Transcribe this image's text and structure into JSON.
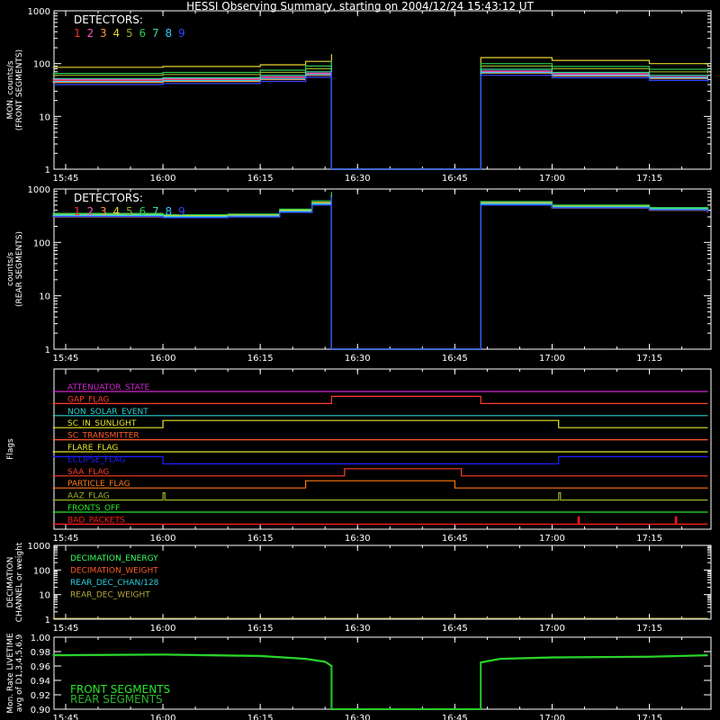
{
  "title": "HESSI Observing Summary, starting on 2004/12/24 15:43:12 UT",
  "colors": {
    "background": "#000000",
    "axes": "#ffffff",
    "detectors": [
      "#ff3030",
      "#ff50c8",
      "#ff9640",
      "#e6d230",
      "#96aa28",
      "#28c850",
      "#32dc96",
      "#32c8ff",
      "#3246ff"
    ],
    "flags": [
      "#d028d0",
      "#ff3c28",
      "#28d2d2",
      "#e6e628",
      "#ff5a28",
      "#e6e628",
      "#1e1eff",
      "#ff3c28",
      "#ff7814",
      "#96b428",
      "#28e628",
      "#ff1e1e"
    ],
    "decimation": [
      "#3cff64",
      "#ff5a28",
      "#28d2dc",
      "#b4aa3c"
    ],
    "livetime": [
      "#28e628",
      "#2cb42c"
    ]
  },
  "time_ticks": [
    "15:45",
    "16:00",
    "16:15",
    "16:30",
    "16:45",
    "17:00",
    "17:15"
  ],
  "chart_data": [
    {
      "type": "line",
      "panel": "front",
      "ylabel": [
        "MON. counts/s",
        "(FRONT SEGMENTS)"
      ],
      "yscale": "log",
      "ylim": [
        1,
        1000
      ],
      "yticks": [
        "1",
        "10",
        "100",
        "1000"
      ],
      "legend_title": "DETECTORS:",
      "legend_items": [
        "1",
        "2",
        "3",
        "4",
        "5",
        "6",
        "7",
        "8",
        "9"
      ],
      "x": [
        "15:43",
        "16:00",
        "16:15",
        "16:22",
        "16:26",
        "16:26",
        "16:49",
        "16:49",
        "17:00",
        "17:15",
        "17:24"
      ],
      "series": [
        {
          "name": "1",
          "values": [
            48,
            50,
            55,
            65,
            80,
            1,
            1,
            70,
            62,
            55,
            50
          ]
        },
        {
          "name": "2",
          "values": [
            50,
            52,
            56,
            66,
            82,
            1,
            1,
            72,
            64,
            56,
            52
          ]
        },
        {
          "name": "3",
          "values": [
            44,
            46,
            50,
            60,
            75,
            1,
            1,
            66,
            58,
            52,
            48
          ]
        },
        {
          "name": "4",
          "values": [
            85,
            88,
            95,
            110,
            150,
            1,
            1,
            130,
            115,
            100,
            90
          ]
        },
        {
          "name": "5",
          "values": [
            60,
            62,
            68,
            80,
            100,
            1,
            1,
            90,
            80,
            70,
            65
          ]
        },
        {
          "name": "6",
          "values": [
            65,
            68,
            75,
            90,
            115,
            1,
            1,
            100,
            88,
            78,
            72
          ]
        },
        {
          "name": "7",
          "values": [
            52,
            54,
            60,
            70,
            88,
            1,
            1,
            78,
            68,
            60,
            56
          ]
        },
        {
          "name": "8",
          "values": [
            46,
            48,
            52,
            62,
            78,
            1,
            1,
            68,
            60,
            54,
            50
          ]
        },
        {
          "name": "9",
          "values": [
            40,
            42,
            46,
            55,
            70,
            1,
            1,
            60,
            54,
            48,
            45
          ]
        }
      ]
    },
    {
      "type": "line",
      "panel": "rear",
      "ylabel": [
        "counts/s",
        "(REAR SEGMENTS)"
      ],
      "yscale": "log",
      "ylim": [
        1,
        1000
      ],
      "yticks": [
        "1",
        "10",
        "100",
        "1000"
      ],
      "legend_title": "DETECTORS:",
      "legend_items": [
        "1",
        "2",
        "3",
        "4",
        "5",
        "6",
        "7",
        "8",
        "9"
      ],
      "x": [
        "15:43",
        "16:00",
        "16:10",
        "16:18",
        "16:23",
        "16:26",
        "16:26",
        "16:49",
        "16:49",
        "17:00",
        "17:15",
        "17:24"
      ],
      "series": [
        {
          "name": "1",
          "values": [
            320,
            300,
            310,
            380,
            520,
            750,
            1,
            1,
            520,
            460,
            420,
            380
          ]
        },
        {
          "name": "2",
          "values": [
            330,
            310,
            320,
            390,
            540,
            780,
            1,
            1,
            540,
            470,
            430,
            390
          ]
        },
        {
          "name": "3",
          "values": [
            300,
            290,
            300,
            370,
            500,
            720,
            1,
            1,
            500,
            440,
            400,
            360
          ]
        },
        {
          "name": "4",
          "values": [
            340,
            320,
            330,
            400,
            560,
            800,
            1,
            1,
            560,
            480,
            440,
            400
          ]
        },
        {
          "name": "5",
          "values": [
            310,
            295,
            305,
            375,
            510,
            730,
            1,
            1,
            510,
            450,
            410,
            370
          ]
        },
        {
          "name": "6",
          "values": [
            350,
            330,
            340,
            420,
            600,
            880,
            1,
            1,
            580,
            500,
            450,
            410
          ]
        },
        {
          "name": "7",
          "values": [
            325,
            305,
            315,
            385,
            530,
            760,
            1,
            1,
            530,
            465,
            425,
            385
          ]
        },
        {
          "name": "8",
          "values": [
            315,
            300,
            310,
            380,
            520,
            740,
            1,
            1,
            520,
            455,
            415,
            375
          ]
        },
        {
          "name": "9",
          "values": [
            305,
            290,
            300,
            365,
            500,
            710,
            1,
            1,
            500,
            445,
            405,
            365
          ]
        }
      ]
    },
    {
      "type": "line",
      "panel": "flags",
      "ylabel": [
        "Flags"
      ],
      "flags": [
        {
          "name": "ATTENUATOR_STATE",
          "changes": [
            [
              "15:43",
              0
            ],
            [
              "17:24",
              0
            ]
          ]
        },
        {
          "name": "GAP_FLAG",
          "changes": [
            [
              "15:43",
              0
            ],
            [
              "16:26",
              1
            ],
            [
              "16:49",
              0
            ],
            [
              "17:24",
              0
            ]
          ]
        },
        {
          "name": "NON_SOLAR_EVENT",
          "changes": [
            [
              "15:43",
              0
            ],
            [
              "17:24",
              0
            ]
          ]
        },
        {
          "name": "SC_IN_SUNLIGHT",
          "changes": [
            [
              "15:43",
              0
            ],
            [
              "16:00",
              1
            ],
            [
              "17:01",
              0
            ],
            [
              "17:24",
              0
            ]
          ]
        },
        {
          "name": "SC_TRANSMITTER",
          "changes": [
            [
              "15:43",
              0
            ],
            [
              "17:24",
              0
            ]
          ]
        },
        {
          "name": "FLARE_FLAG",
          "changes": [
            [
              "15:43",
              0
            ],
            [
              "17:24",
              0
            ]
          ]
        },
        {
          "name": "ECLIPSE_FLAG",
          "changes": [
            [
              "15:43",
              1
            ],
            [
              "16:00",
              0
            ],
            [
              "17:01",
              1
            ],
            [
              "17:24",
              1
            ]
          ]
        },
        {
          "name": "SAA_FLAG",
          "changes": [
            [
              "15:43",
              0
            ],
            [
              "16:28",
              1
            ],
            [
              "16:46",
              0
            ],
            [
              "17:24",
              0
            ]
          ]
        },
        {
          "name": "PARTICLE_FLAG",
          "changes": [
            [
              "15:43",
              0
            ],
            [
              "16:22",
              1
            ],
            [
              "16:45",
              0
            ],
            [
              "17:24",
              0
            ]
          ]
        },
        {
          "name": "AAZ_FLAG",
          "changes": [
            [
              "15:43",
              0
            ],
            [
              "16:00",
              1
            ],
            [
              "16:00.3",
              0
            ],
            [
              "17:01",
              1
            ],
            [
              "17:01.3",
              0
            ],
            [
              "17:24",
              0
            ]
          ]
        },
        {
          "name": "FRONTS_OFF",
          "changes": [
            [
              "15:43",
              0
            ],
            [
              "17:24",
              0
            ]
          ]
        },
        {
          "name": "BAD_PACKETS",
          "changes": [
            [
              "15:43",
              0
            ],
            [
              "17:04",
              1
            ],
            [
              "17:04.2",
              0
            ],
            [
              "17:19",
              1
            ],
            [
              "17:19.2",
              0
            ],
            [
              "17:24",
              0
            ]
          ]
        }
      ]
    },
    {
      "type": "line",
      "panel": "decimation",
      "ylabel": [
        "DECIMATION",
        "CHANNEL or weight"
      ],
      "yscale": "log",
      "ylim": [
        1,
        1000
      ],
      "yticks": [
        "1",
        "10",
        "100",
        "1000"
      ],
      "legend_items": [
        "DECIMATION_ENERGY",
        "DECIMATION_WEIGHT",
        "REAR_DEC_CHAN/128",
        "REAR_DEC_WEIGHT"
      ],
      "x": [
        "15:43",
        "17:24"
      ],
      "series": [
        {
          "name": "DECIMATION_ENERGY",
          "values": [
            1,
            1
          ]
        },
        {
          "name": "DECIMATION_WEIGHT",
          "values": [
            1,
            1
          ]
        },
        {
          "name": "REAR_DEC_CHAN/128",
          "values": [
            1,
            1
          ]
        },
        {
          "name": "REAR_DEC_WEIGHT",
          "values": [
            1,
            1
          ]
        }
      ]
    },
    {
      "type": "line",
      "panel": "livetime",
      "ylabel": [
        "Mon. Rate LIVETIME",
        "avg of D1,3,4,5,6,9"
      ],
      "ylim": [
        0.9,
        1.0
      ],
      "yticks": [
        "0.90",
        "0.92",
        "0.94",
        "0.96",
        "0.98",
        "1.00"
      ],
      "legend_items": [
        "FRONT SEGMENTS",
        "REAR SEGMENTS"
      ],
      "x": [
        "15:43",
        "16:00",
        "16:15",
        "16:22",
        "16:25",
        "16:26",
        "16:26",
        "16:49",
        "16:49",
        "16:52",
        "17:00",
        "17:15",
        "17:24"
      ],
      "series": [
        {
          "name": "FRONT SEGMENTS",
          "values": [
            0.975,
            0.976,
            0.974,
            0.97,
            0.966,
            0.96,
            0.9,
            0.9,
            0.965,
            0.97,
            0.972,
            0.973,
            0.975
          ]
        },
        {
          "name": "REAR SEGMENTS",
          "values": [
            0.974,
            0.975,
            0.973,
            0.969,
            0.965,
            0.959,
            0.9,
            0.9,
            0.964,
            0.969,
            0.971,
            0.972,
            0.974
          ]
        }
      ]
    }
  ]
}
